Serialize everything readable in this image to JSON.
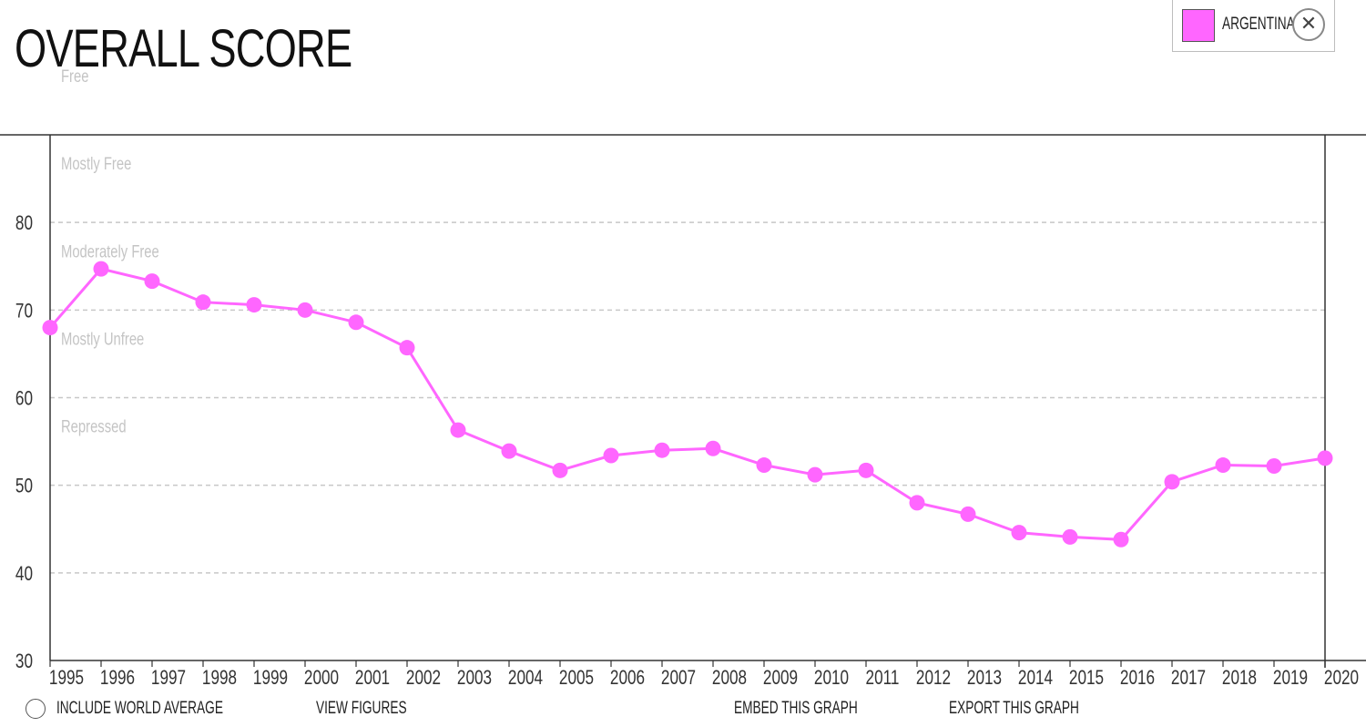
{
  "header": {
    "title": "OVERALL SCORE"
  },
  "legend": {
    "label": "ARGENTINA",
    "swatch_color": "#ff66ff",
    "close_icon": "close-icon"
  },
  "footer": {
    "include_world": "INCLUDE WORLD AVERAGE",
    "view_figures": "VIEW FIGURES",
    "embed": "EMBED THIS GRAPH",
    "export": "EXPORT THIS GRAPH"
  },
  "chart_data": {
    "type": "line",
    "x": [
      "1995",
      "1996",
      "1997",
      "1998",
      "1999",
      "2000",
      "2001",
      "2002",
      "2003",
      "2004",
      "2005",
      "2006",
      "2007",
      "2008",
      "2009",
      "2010",
      "2011",
      "2012",
      "2013",
      "2014",
      "2015",
      "2016",
      "2017",
      "2018",
      "2019",
      "2020"
    ],
    "series": [
      {
        "name": "ARGENTINA",
        "color": "#ff66ff",
        "values": [
          68.0,
          74.7,
          73.3,
          70.9,
          70.6,
          70.0,
          68.6,
          65.7,
          56.3,
          53.9,
          51.7,
          53.4,
          54.0,
          54.2,
          52.3,
          51.2,
          51.7,
          48.0,
          46.7,
          44.6,
          44.1,
          43.8,
          50.4,
          52.3,
          52.2,
          53.1
        ]
      }
    ],
    "ylim": [
      30,
      90
    ],
    "yticks": [
      30,
      40,
      50,
      60,
      70,
      80
    ],
    "bands": [
      {
        "label": "Free",
        "y": 90
      },
      {
        "label": "Mostly Free",
        "y": 80
      },
      {
        "label": "Moderately Free",
        "y": 70
      },
      {
        "label": "Mostly Unfree",
        "y": 60
      },
      {
        "label": "Repressed",
        "y": 50
      }
    ],
    "grid": true,
    "xlabel": "",
    "ylabel": ""
  }
}
